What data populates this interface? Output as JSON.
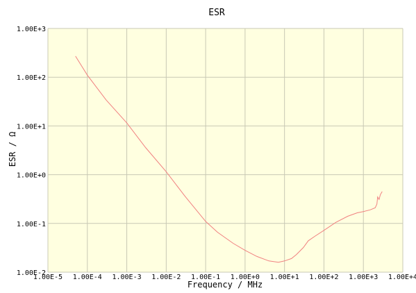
{
  "chart_data": {
    "type": "line",
    "title": "ESR",
    "xlabel": "Frequency / MHz",
    "ylabel": "ESR / Ω",
    "x_scale": "log",
    "y_scale": "log",
    "xlim": [
      1e-05,
      10000
    ],
    "ylim": [
      0.01,
      1000
    ],
    "x_tick_labels": [
      "1.00E-5",
      "1.00E-4",
      "1.00E-3",
      "1.00E-2",
      "1.00E-1",
      "1.00E+0",
      "1.00E+1",
      "1.00E+2",
      "1.00E+3",
      "1.00E+4"
    ],
    "y_tick_labels": [
      "1.00E+3",
      "1.00E+2",
      "1.00E+1",
      "1.00E+0",
      "1.00E-1",
      "1.00E-2"
    ],
    "grid": true,
    "plot_background": "#ffffe0",
    "grid_color": "#c8c8b4",
    "line_color": "#f08080",
    "series": [
      {
        "x": [
          5e-05,
          0.0001,
          0.0003,
          0.001,
          0.003,
          0.01,
          0.03,
          0.1,
          0.2,
          0.5,
          1,
          2,
          4,
          7,
          10,
          15,
          20,
          30,
          40,
          60,
          100,
          200,
          400,
          700,
          1000,
          1500,
          2000,
          2200,
          2300,
          2500,
          2700,
          3000
        ],
        "y": [
          270,
          110,
          34,
          11.5,
          3.6,
          1.15,
          0.36,
          0.11,
          0.066,
          0.039,
          0.028,
          0.021,
          0.017,
          0.016,
          0.017,
          0.019,
          0.023,
          0.032,
          0.044,
          0.055,
          0.072,
          0.105,
          0.14,
          0.165,
          0.175,
          0.19,
          0.21,
          0.25,
          0.35,
          0.31,
          0.39,
          0.45
        ]
      }
    ]
  }
}
